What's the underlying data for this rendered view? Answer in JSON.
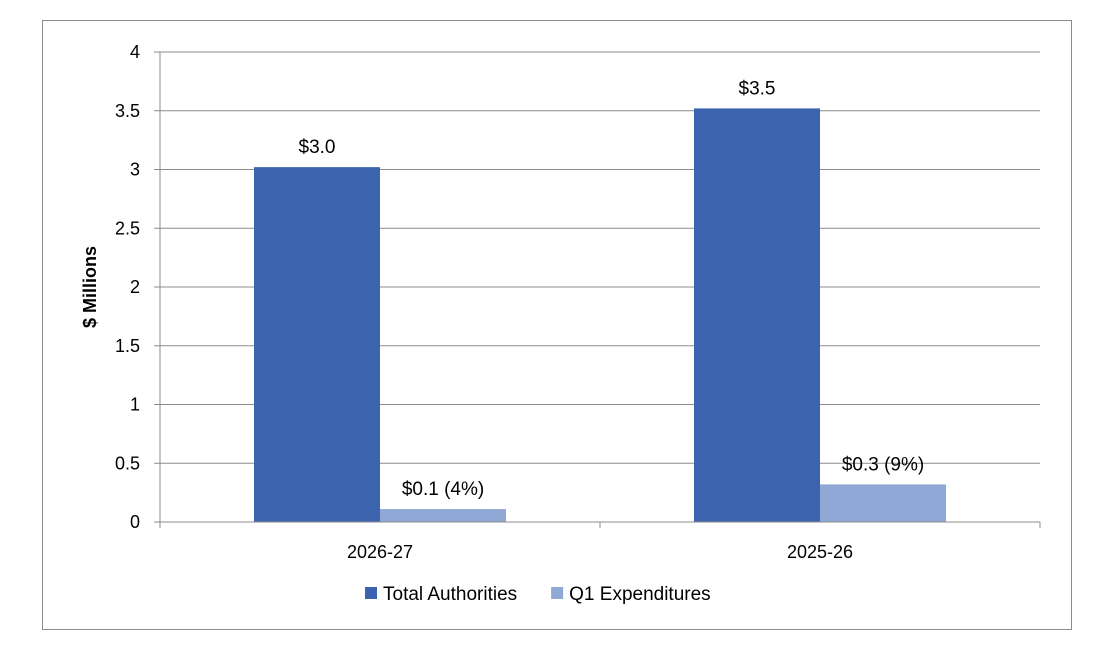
{
  "chart_data": {
    "type": "bar",
    "categories": [
      "2026-27",
      "2025-26"
    ],
    "series": [
      {
        "name": "Total Authorities",
        "color": "#3c63ad",
        "values": [
          3.02,
          3.52
        ],
        "labels": [
          "$3.0",
          "$3.5"
        ]
      },
      {
        "name": "Q1 Expenditures",
        "color": "#8fa8d6",
        "values": [
          0.11,
          0.32
        ],
        "labels": [
          "$0.1 (4%)",
          "$0.3 (9%)"
        ]
      }
    ],
    "title": "",
    "xlabel": "",
    "ylabel": "$ Millions",
    "ylim": [
      0,
      4
    ],
    "yticks": [
      "0",
      "0.5",
      "1",
      "1.5",
      "2",
      "2.5",
      "3",
      "3.5",
      "4"
    ],
    "grid": true,
    "legend_position": "bottom"
  }
}
